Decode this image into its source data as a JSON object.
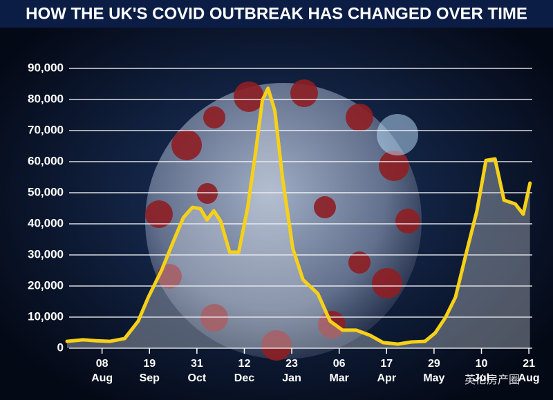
{
  "chart_data": {
    "type": "line",
    "title": "HOW THE UK'S COVID OUTBREAK HAS CHANGED OVER TIME",
    "x": [
      -31,
      -17,
      -5,
      7,
      20,
      32,
      41,
      53,
      63,
      72,
      80,
      87,
      93,
      99,
      105,
      113,
      121,
      129,
      136,
      142,
      147,
      153,
      160,
      169,
      178,
      191,
      202,
      213,
      225,
      237,
      249,
      262,
      274,
      286,
      295,
      304,
      313,
      322,
      332,
      340,
      348,
      356,
      366,
      373,
      379
    ],
    "values": [
      2200,
      2700,
      2400,
      2200,
      3100,
      8700,
      16400,
      25300,
      34200,
      42000,
      45300,
      44900,
      41300,
      44200,
      40900,
      30900,
      30900,
      45300,
      63100,
      79800,
      83600,
      76400,
      54200,
      32000,
      22000,
      17600,
      8700,
      5800,
      5800,
      4200,
      1800,
      1300,
      2000,
      2200,
      4900,
      9800,
      16400,
      29800,
      44200,
      60400,
      60900,
      47600,
      46400,
      43100,
      53100
    ],
    "color": "#f7d117",
    "xlim": [
      -31,
      381
    ],
    "xticks": [
      {
        "value": 0,
        "label": "08\nAug"
      },
      {
        "value": 42,
        "label": "19\nSep"
      },
      {
        "value": 84,
        "label": "31\nOct"
      },
      {
        "value": 126,
        "label": "12\nDec"
      },
      {
        "value": 168,
        "label": "23\nJan"
      },
      {
        "value": 210,
        "label": "06\nMar"
      },
      {
        "value": 252,
        "label": "17\nApr"
      },
      {
        "value": 294,
        "label": "29\nMay"
      },
      {
        "value": 336,
        "label": "10\nJul"
      },
      {
        "value": 378,
        "label": "21\nAug"
      }
    ],
    "ylim": [
      0,
      90000
    ],
    "yticks": [
      {
        "value": 0,
        "label": "0"
      },
      {
        "value": 10000,
        "label": "10,000"
      },
      {
        "value": 20000,
        "label": "20,000"
      },
      {
        "value": 30000,
        "label": "30,000"
      },
      {
        "value": 40000,
        "label": "40,000"
      },
      {
        "value": 50000,
        "label": "50,000"
      },
      {
        "value": 60000,
        "label": "60,000"
      },
      {
        "value": 70000,
        "label": "70,000"
      },
      {
        "value": 80000,
        "label": "80,000"
      },
      {
        "value": 90000,
        "label": "90,000"
      }
    ],
    "grid": true
  },
  "watermark": "英伦房产圈"
}
